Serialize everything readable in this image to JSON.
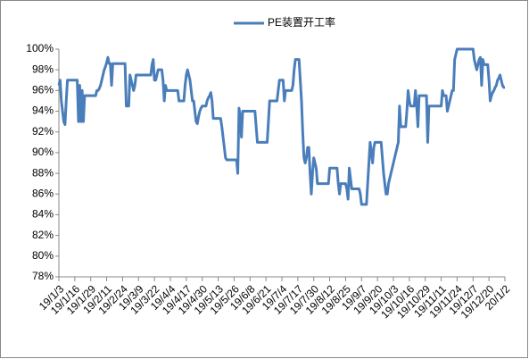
{
  "chart_data": {
    "type": "line",
    "categories": [
      "19/1/3",
      null,
      null,
      null,
      null,
      null,
      null,
      null,
      null,
      null,
      null,
      null,
      null,
      "19/1/16",
      null,
      null,
      null,
      null,
      null,
      null,
      null,
      null,
      null,
      null,
      null,
      null,
      "19/1/29",
      null,
      null,
      null,
      null,
      null,
      null,
      null,
      null,
      null,
      null,
      null,
      null,
      "19/2/11",
      null,
      null,
      null,
      null,
      null,
      null,
      null,
      null,
      null,
      null,
      null,
      null,
      "19/2/24",
      null,
      null,
      null,
      null,
      null,
      null,
      null,
      null,
      null,
      null,
      null,
      null,
      "19/3/9",
      null,
      null,
      null,
      null,
      null,
      null,
      null,
      null,
      null,
      null,
      null,
      null,
      "19/3/22",
      null,
      null,
      null,
      null,
      null,
      null,
      null,
      null,
      null,
      null,
      null,
      null,
      "19/4/4",
      null,
      null,
      null,
      null,
      null,
      null,
      null,
      null,
      null,
      null,
      null,
      null,
      "19/4/17",
      null,
      null,
      null,
      null,
      null,
      null,
      null,
      null,
      null,
      null,
      null,
      null,
      "19/4/30",
      null,
      null,
      null,
      null,
      null,
      null,
      null,
      null,
      null,
      null,
      null,
      null,
      "19/5/13",
      null,
      null,
      null,
      null,
      null,
      null,
      null,
      null,
      null,
      null,
      null,
      null,
      "19/5/26",
      null,
      null,
      null,
      null,
      null,
      null,
      null,
      null,
      null,
      null,
      null,
      null,
      "19/6/8",
      null,
      null,
      null,
      null,
      null,
      null,
      null,
      null,
      null,
      null,
      null,
      null,
      "19/6/21",
      null,
      null,
      null,
      null,
      null,
      null,
      null,
      null,
      null,
      null,
      null,
      null,
      "19/7/4",
      null,
      null,
      null,
      null,
      null,
      null,
      null,
      null,
      null,
      null,
      null,
      null,
      "19/7/17",
      null,
      null,
      null,
      null,
      null,
      null,
      null,
      null,
      null,
      null,
      null,
      null,
      "19/7/30",
      null,
      null,
      null,
      null,
      null,
      null,
      null,
      null,
      null,
      null,
      null,
      null,
      "19/8/12",
      null,
      null,
      null,
      null,
      null,
      null,
      null,
      null,
      null,
      null,
      null,
      null,
      "19/8/25",
      null,
      null,
      null,
      null,
      null,
      null,
      null,
      null,
      null,
      null,
      null,
      null,
      "19/9/7",
      null,
      null,
      null,
      null,
      null,
      null,
      null,
      null,
      null,
      null,
      null,
      null,
      "19/9/20",
      null,
      null,
      null,
      null,
      null,
      null,
      null,
      null,
      null,
      null,
      null,
      null,
      "19/10/3",
      null,
      null,
      null,
      null,
      null,
      null,
      null,
      null,
      null,
      null,
      null,
      null,
      "19/10/16",
      null,
      null,
      null,
      null,
      null,
      null,
      null,
      null,
      null,
      null,
      null,
      null,
      "19/10/29",
      null,
      null,
      null,
      null,
      null,
      null,
      null,
      null,
      null,
      null,
      null,
      null,
      "19/11/11",
      null,
      null,
      null,
      null,
      null,
      null,
      null,
      null,
      null,
      null,
      null,
      null,
      "19/11/24",
      null,
      null,
      null,
      null,
      null,
      null,
      null,
      null,
      null,
      null,
      null,
      null,
      "19/12/7",
      null,
      null,
      null,
      null,
      null,
      null,
      null,
      null,
      null,
      null,
      null,
      null,
      "19/12/20",
      null,
      null,
      null,
      null,
      null,
      null,
      null,
      null,
      null,
      null,
      null,
      null,
      "20/1/2"
    ],
    "series": [
      {
        "name": "PE装置开工率",
        "color": "#4a7ebb",
        "values": [
          96.5,
          97,
          95,
          94,
          93,
          92.7,
          95,
          97,
          97,
          97,
          97,
          97,
          97,
          97,
          97,
          97,
          93,
          96.5,
          93,
          96,
          93,
          95.5,
          95.5,
          95.5,
          95.5,
          95.5,
          95.5,
          95.5,
          95.5,
          95.5,
          95.5,
          96,
          96,
          96.2,
          96.5,
          97,
          97.5,
          98,
          98.3,
          98.7,
          99.2,
          98.6,
          98.6,
          96.5,
          98.6,
          98.6,
          98.6,
          98.6,
          98.6,
          98.6,
          98.6,
          98.6,
          98.6,
          98.6,
          98.6,
          94.5,
          94.5,
          94.5,
          97.5,
          97,
          96.5,
          96,
          96.5,
          97.5,
          97.5,
          97.5,
          97.5,
          97.5,
          97.5,
          97.5,
          97.5,
          97.5,
          97.5,
          97.5,
          97.5,
          97.5,
          98.5,
          99,
          97,
          97,
          97.5,
          98,
          98,
          98,
          98,
          97,
          95,
          96.5,
          96,
          96,
          96,
          96,
          96,
          96,
          96,
          96,
          96,
          96,
          95,
          95,
          95,
          95,
          95,
          96.5,
          97.5,
          98,
          97.5,
          97,
          96,
          95,
          95,
          94,
          93,
          92.8,
          93.5,
          94,
          94.3,
          94.5,
          94.5,
          94.5,
          94.5,
          95,
          95.3,
          95.5,
          95.8,
          95,
          93.3,
          93.3,
          93.3,
          93.3,
          93.3,
          93.3,
          93.3,
          92.5,
          91.5,
          90.5,
          89.5,
          89.3,
          89.3,
          89.3,
          89.3,
          89.3,
          89.3,
          89.3,
          89.3,
          89.3,
          88,
          94.3,
          93.5,
          91.5,
          94,
          94,
          94,
          94,
          94,
          94,
          94,
          94,
          94,
          94,
          94,
          92.5,
          91,
          91,
          91,
          91,
          91,
          91,
          91,
          91,
          91,
          93,
          95,
          95,
          95,
          95,
          95,
          95,
          95,
          96,
          97,
          97,
          97,
          97,
          95,
          96,
          96,
          96,
          96,
          96,
          96,
          96.5,
          98,
          99,
          99,
          99,
          99,
          97,
          95,
          92,
          89.5,
          89,
          89.5,
          90.5,
          90.5,
          88,
          86,
          88,
          89.5,
          89,
          88.5,
          87,
          87,
          87,
          87,
          87,
          87,
          87,
          87,
          87,
          87,
          88.5,
          88.5,
          88.5,
          88.5,
          88.5,
          88.5,
          88.5,
          87,
          86,
          87,
          87,
          87,
          87,
          87,
          86.5,
          85.5,
          88.5,
          87.5,
          86.5,
          86.5,
          86.5,
          86.5,
          86.5,
          86.5,
          86.5,
          86,
          85,
          85,
          85,
          85,
          85,
          87,
          89,
          91,
          90,
          89,
          90.5,
          91,
          91,
          91,
          91,
          91,
          91,
          89.5,
          88,
          87,
          86,
          86,
          87,
          87.5,
          88,
          88.5,
          89,
          89.5,
          90,
          90.5,
          91,
          94.5,
          92.5,
          92.5,
          92.5,
          92.5,
          92.5,
          94,
          96,
          95,
          94.5,
          94.5,
          94.5,
          94.5,
          96,
          94.5,
          92.5,
          95.5,
          95.5,
          95.5,
          95.5,
          95.5,
          95.5,
          95.5,
          91,
          94.5,
          94.5,
          94.5,
          94.5,
          94.5,
          94.5,
          94.5,
          94.5,
          94.5,
          94.5,
          94.5,
          96,
          95.5,
          95.5,
          95.5,
          94,
          94.5,
          95,
          95.5,
          96,
          96,
          99,
          99.5,
          100,
          100,
          100,
          100,
          100,
          100,
          100,
          100,
          100,
          100,
          100,
          100,
          100,
          100,
          99,
          98.5,
          98,
          98.5,
          99,
          99.2,
          96.5,
          99,
          98.5,
          98.5,
          98.5,
          98.5,
          97,
          95,
          95.5,
          95.8,
          96,
          96.3,
          96.5,
          97,
          97.2,
          97.5,
          97,
          96.5,
          96.3,
          96.3
        ]
      }
    ],
    "ylim": [
      78,
      100
    ],
    "yticks": [
      {
        "value": 78,
        "label": "78%"
      },
      {
        "value": 80,
        "label": "80%"
      },
      {
        "value": 82,
        "label": "82%"
      },
      {
        "value": 84,
        "label": "84%"
      },
      {
        "value": 86,
        "label": "86%"
      },
      {
        "value": 88,
        "label": "88%"
      },
      {
        "value": 90,
        "label": "90%"
      },
      {
        "value": 92,
        "label": "92%"
      },
      {
        "value": 94,
        "label": "94%"
      },
      {
        "value": 96,
        "label": "96%"
      },
      {
        "value": 98,
        "label": "98%"
      },
      {
        "value": 100,
        "label": "100%"
      }
    ],
    "grid": false,
    "legend": "top"
  }
}
